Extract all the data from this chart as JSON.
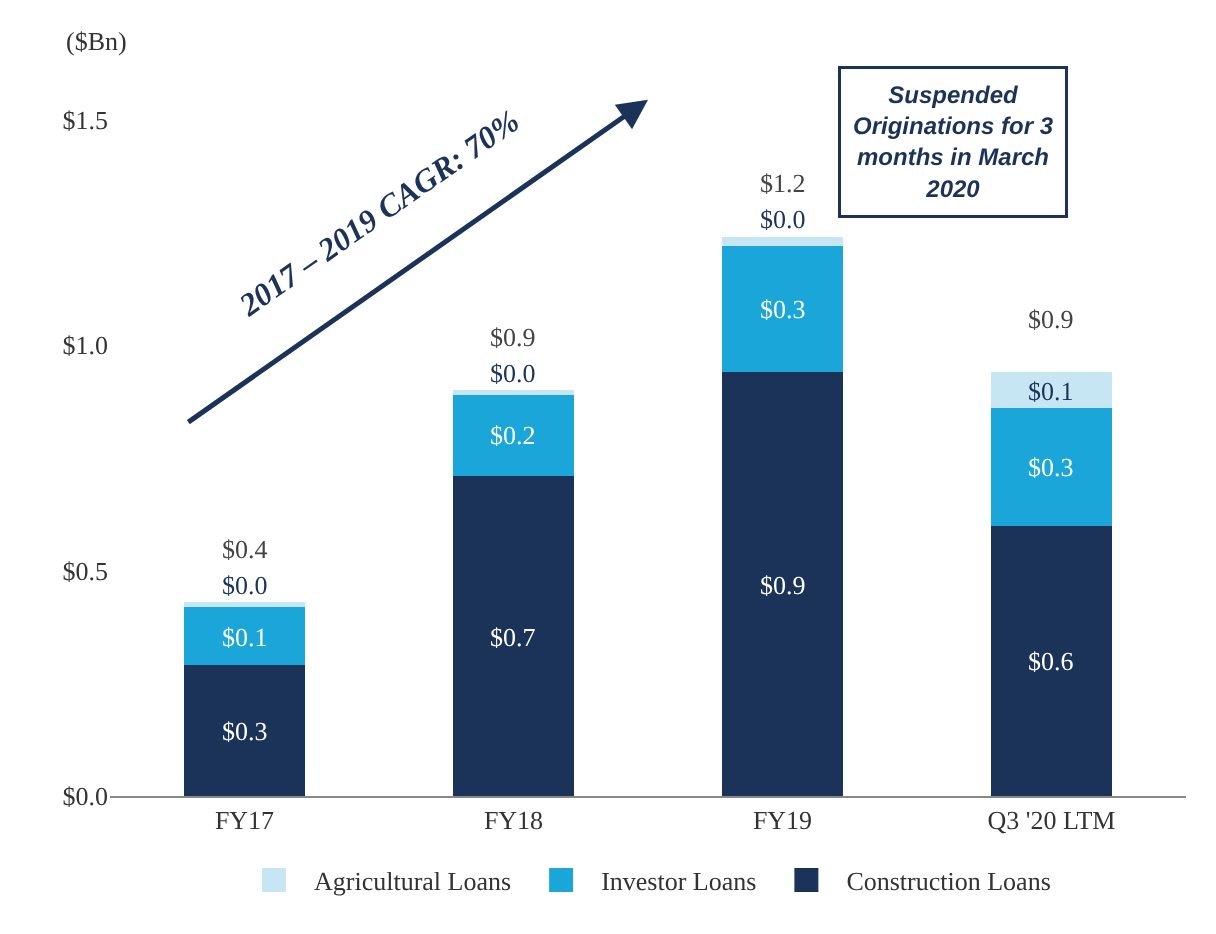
{
  "chart_data": {
    "type": "bar",
    "stacked": true,
    "ylabel": "($Bn)",
    "categories": [
      "FY17",
      "FY18",
      "FY19",
      "Q3 '20 LTM"
    ],
    "series": [
      {
        "name": "Construction Loans",
        "color": "#1b3358",
        "values": [
          0.29,
          0.71,
          0.94,
          0.6
        ],
        "value_labels": [
          "$0.3",
          "$0.7",
          "$0.9",
          "$0.6"
        ]
      },
      {
        "name": "Investor Loans",
        "color": "#1ba6d9",
        "values": [
          0.13,
          0.18,
          0.28,
          0.26
        ],
        "value_labels": [
          "$0.1",
          "$0.2",
          "$0.3",
          "$0.3"
        ]
      },
      {
        "name": "Agricultural Loans",
        "color": "#c6e6f3",
        "values": [
          0.01,
          0.01,
          0.02,
          0.08
        ],
        "value_labels": [
          "$0.0",
          "$0.0",
          "$0.0",
          "$0.1"
        ]
      }
    ],
    "totals": [
      "$0.4",
      "$0.9",
      "$1.2",
      "$0.9"
    ],
    "ylim": [
      0,
      1.5
    ],
    "yticks": [
      {
        "value": 0,
        "label": "$0.0"
      },
      {
        "value": 0.5,
        "label": "$0.5"
      },
      {
        "value": 1.0,
        "label": "$1.0"
      },
      {
        "value": 1.5,
        "label": "$1.5"
      }
    ],
    "legend": "bottom",
    "annotations": [
      "2017 – 2019 CAGR: 70%",
      "Suspended\nOriginations for 3\nmonths in March\n2020"
    ]
  }
}
